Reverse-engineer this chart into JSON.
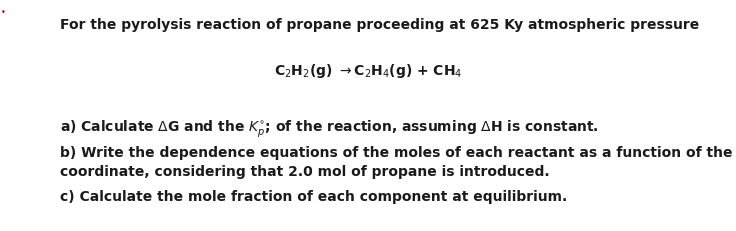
{
  "title": "For the pyrolysis reaction of propane proceeding at 625 Ky atmospheric pressure",
  "reaction_text": "C$_2$H$_2$(g) →C$_2$H$_4$(g) + CH$_4$",
  "line_a": "a) Calculate ΔG and the $K_p^{\\circ}$; of the reaction, assuming ΔH is constant.",
  "line_b1": "b) Write the dependence equations of the moles of each reactant as a function of the reaction",
  "line_b2": "coordinate, considering that 2.0 mol of propane is introduced.",
  "line_c": "c) Calculate the mole fraction of each component at equilibrium.",
  "dot_color": "#cc0000",
  "text_color": "#1a1a1a",
  "bg_color": "#ffffff",
  "font_size": 10.0
}
